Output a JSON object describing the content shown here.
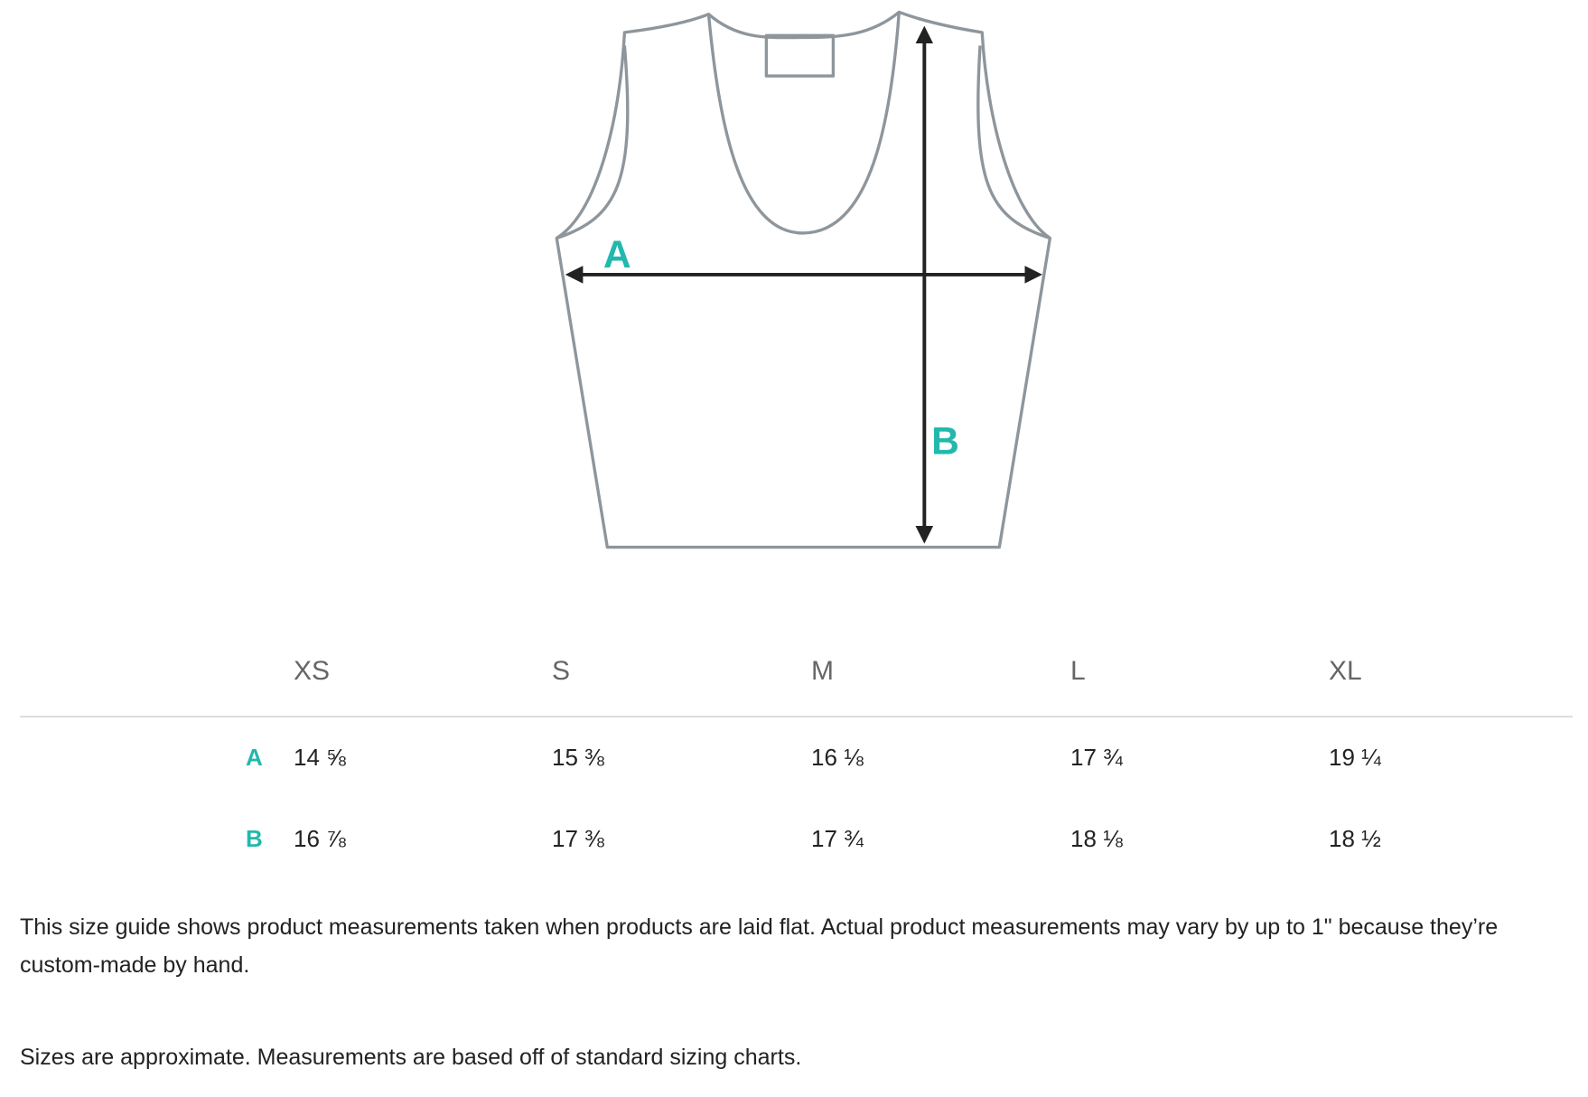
{
  "diagram": {
    "label_a": "A",
    "label_b": "B",
    "outline_color": "#8e969c",
    "arrow_color": "#222222",
    "accent_color": "#22b8ad"
  },
  "table": {
    "sizes": [
      "XS",
      "S",
      "M",
      "L",
      "XL"
    ],
    "rows": [
      {
        "label": "A",
        "values": [
          "14 ⅝",
          "15 ⅜",
          "16 ⅛",
          "17 ¾",
          "19 ¼"
        ]
      },
      {
        "label": "B",
        "values": [
          "16 ⅞",
          "17 ⅜",
          "17 ¾",
          "18 ⅛",
          "18 ½"
        ]
      }
    ]
  },
  "notes": [
    "This size guide shows product measurements taken when products are laid flat. Actual product measurements may vary by up to 1\" because they’re custom-made by hand.",
    "Sizes are approximate. Measurements are based off of standard sizing charts."
  ]
}
